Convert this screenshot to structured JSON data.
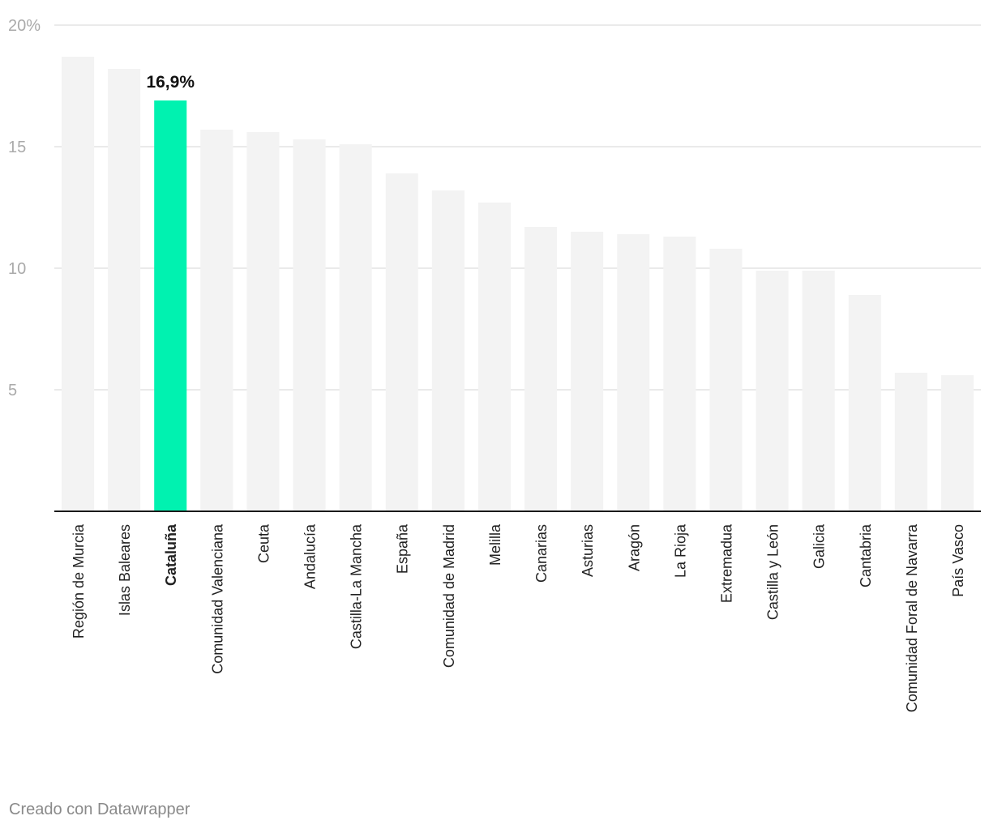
{
  "footer": {
    "credit": "Creado con Datawrapper"
  },
  "colors": {
    "bar": "#f3f3f3",
    "highlight": "#00f2b0",
    "grid": "#e3e3e3",
    "axis": "#1a1a1a",
    "tick_text": "#aaaaaa",
    "label_text": "#222222"
  },
  "chart_data": {
    "type": "bar",
    "title": "",
    "xlabel": "",
    "ylabel": "",
    "ylim": [
      0,
      20
    ],
    "y_ticks": [
      {
        "value": 5,
        "label": "5"
      },
      {
        "value": 10,
        "label": "10"
      },
      {
        "value": 15,
        "label": "15"
      },
      {
        "value": 20,
        "label": "20%"
      }
    ],
    "grid": true,
    "highlight": {
      "category": "Cataluña",
      "label": "16,9%"
    },
    "categories": [
      "Región de Murcia",
      "Islas Baleares",
      "Cataluña",
      "Comunidad Valenciana",
      "Ceuta",
      "Andalucía",
      "Castilla-La Mancha",
      "España",
      "Comunidad de Madrid",
      "Melilla",
      "Canarias",
      "Asturias",
      "Aragón",
      "La Rioja",
      "Extremadua",
      "Castilla y León",
      "Galicia",
      "Cantabria",
      "Comunidad Foral de Navarra",
      "País Vasco"
    ],
    "values": [
      18.7,
      18.2,
      16.9,
      15.7,
      15.6,
      15.3,
      15.1,
      13.9,
      13.2,
      12.7,
      11.7,
      11.5,
      11.4,
      11.3,
      10.8,
      9.9,
      9.9,
      8.9,
      5.7,
      5.6
    ]
  }
}
